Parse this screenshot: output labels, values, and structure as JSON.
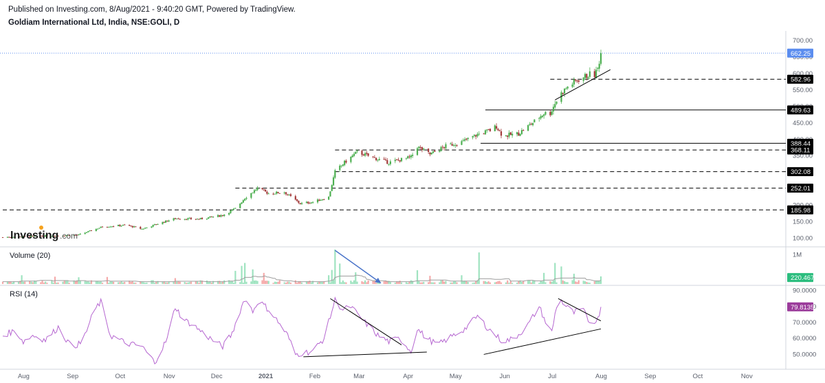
{
  "header": {
    "published": "Published on Investing.com, 8/Aug/2021 - 9:40:20 GMT, Powered by TradingView.",
    "symbol": "Goldiam International Ltd, India, NSE:GOLI, D"
  },
  "watermark": {
    "brand": "Investing",
    "suffix": ".com"
  },
  "colors": {
    "up": "#4caf50",
    "down": "#a33a3a",
    "vol_up": "#9fe3c0",
    "vol_down": "#f5aaaa",
    "vol_ma": "#9e9e9e",
    "rsi": "#b565d0",
    "price_tag": "#5b8def",
    "vol_tag": "#2bbd7e",
    "rsi_tag": "#9b3c9b",
    "level_tag": "#000000",
    "arrow": "#4a74c9"
  },
  "chart_data": {
    "type": "candlestick",
    "x_axis": {
      "labels": [
        "Aug",
        "Sep",
        "Oct",
        "Nov",
        "Dec",
        "2021",
        "Feb",
        "Mar",
        "Apr",
        "May",
        "Jun",
        "Jul",
        "Aug",
        "Sep",
        "Oct",
        "Nov"
      ],
      "start": "2020-07-24",
      "end": "2021-11-30"
    },
    "price": {
      "ylim": [
        80,
        715
      ],
      "ticks": [
        100,
        150,
        200,
        250,
        300,
        350,
        400,
        450,
        500,
        550,
        600,
        650,
        700
      ],
      "tick_labels": [
        "100.00",
        "150.00",
        "200.00",
        "250.00",
        "300.00",
        "350.00",
        "400.00",
        "450.00",
        "500.00",
        "550.00",
        "600.00",
        "650.00",
        "700.00"
      ],
      "last": {
        "value": 662.25,
        "label": "662.25"
      },
      "anchors": [
        [
          "2020-07-24",
          103
        ],
        [
          "2020-08-20",
          107
        ],
        [
          "2020-09-10",
          110
        ],
        [
          "2020-09-25",
          135
        ],
        [
          "2020-10-10",
          140
        ],
        [
          "2020-10-20",
          128
        ],
        [
          "2020-11-01",
          147
        ],
        [
          "2020-11-10",
          160
        ],
        [
          "2020-11-25",
          158
        ],
        [
          "2020-12-10",
          170
        ],
        [
          "2020-12-18",
          190
        ],
        [
          "2020-12-24",
          222
        ],
        [
          "2021-01-01",
          252
        ],
        [
          "2021-01-08",
          236
        ],
        [
          "2021-01-18",
          240
        ],
        [
          "2021-01-28",
          205
        ],
        [
          "2021-02-05",
          210
        ],
        [
          "2021-02-15",
          225
        ],
        [
          "2021-02-19",
          302
        ],
        [
          "2021-02-25",
          330
        ],
        [
          "2021-03-05",
          362
        ],
        [
          "2021-03-15",
          345
        ],
        [
          "2021-03-25",
          330
        ],
        [
          "2021-04-08",
          346
        ],
        [
          "2021-04-12",
          378
        ],
        [
          "2021-04-20",
          355
        ],
        [
          "2021-05-01",
          382
        ],
        [
          "2021-05-10",
          392
        ],
        [
          "2021-05-20",
          415
        ],
        [
          "2021-05-28",
          428
        ],
        [
          "2021-06-01",
          440
        ],
        [
          "2021-06-05",
          410
        ],
        [
          "2021-06-15",
          418
        ],
        [
          "2021-06-25",
          455
        ],
        [
          "2021-07-01",
          480
        ],
        [
          "2021-07-05",
          480
        ],
        [
          "2021-07-08",
          510
        ],
        [
          "2021-07-12",
          540
        ],
        [
          "2021-07-16",
          560
        ],
        [
          "2021-07-22",
          580
        ],
        [
          "2021-07-30",
          598
        ],
        [
          "2021-08-02",
          596
        ],
        [
          "2021-08-04",
          615
        ],
        [
          "2021-08-06",
          662.25
        ]
      ],
      "levels": [
        {
          "value": 582.96,
          "label": "582.96",
          "style": "dashed",
          "from": "2021-07-05"
        },
        {
          "value": 489.63,
          "label": "489.63",
          "style": "solid",
          "from": "2021-05-25"
        },
        {
          "value": 388.44,
          "label": "388.44",
          "style": "solid",
          "from": "2021-05-22"
        },
        {
          "value": 368.11,
          "label": "368.11",
          "style": "dashed",
          "from": "2021-02-19"
        },
        {
          "value": 302.08,
          "label": "302.08",
          "style": "dashed",
          "from": "2021-02-19"
        },
        {
          "value": 252.01,
          "label": "252.01",
          "style": "dashed",
          "from": "2020-12-18"
        },
        {
          "value": 185.98,
          "label": "185.98",
          "style": "dashed",
          "from": "2020-07-24"
        }
      ],
      "trendline": {
        "from": [
          "2021-07-08",
          520
        ],
        "to": [
          "2021-08-12",
          612
        ]
      }
    },
    "volume": {
      "title": "Volume (20)",
      "ylim": [
        0,
        1200000
      ],
      "ticks": [
        1000000
      ],
      "tick_labels": [
        "1M"
      ],
      "last": {
        "value": 220467,
        "label": "220.467K"
      },
      "spikes": [
        [
          "2020-08-05",
          300000
        ],
        [
          "2020-08-15",
          280000
        ],
        [
          "2020-08-26",
          250000
        ],
        [
          "2020-09-10",
          230000
        ],
        [
          "2020-09-28",
          240000
        ],
        [
          "2020-11-10",
          200000
        ],
        [
          "2020-12-12",
          250000
        ],
        [
          "2020-12-18",
          450000
        ],
        [
          "2020-12-22",
          620000
        ],
        [
          "2020-12-24",
          720000
        ],
        [
          "2020-12-29",
          500000
        ],
        [
          "2021-01-05",
          380000
        ],
        [
          "2021-02-15",
          300000
        ],
        [
          "2021-02-17",
          480000
        ],
        [
          "2021-02-19",
          1180000
        ],
        [
          "2021-02-22",
          700000
        ],
        [
          "2021-03-04",
          400000
        ],
        [
          "2021-04-12",
          470000
        ],
        [
          "2021-04-20",
          280000
        ],
        [
          "2021-05-10",
          300000
        ],
        [
          "2021-05-21",
          1080000
        ],
        [
          "2021-06-05",
          300000
        ],
        [
          "2021-06-20",
          350000
        ],
        [
          "2021-07-01",
          380000
        ],
        [
          "2021-07-08",
          720000
        ],
        [
          "2021-07-12",
          600000
        ],
        [
          "2021-07-20",
          350000
        ],
        [
          "2021-08-06",
          260000
        ]
      ],
      "arrow": {
        "from": [
          "2021-02-19",
          1150000
        ],
        "to": [
          "2021-03-20",
          30000
        ]
      }
    },
    "rsi": {
      "title": "RSI (14)",
      "ylim": [
        42,
        92
      ],
      "ticks": [
        50,
        60,
        70,
        80,
        90
      ],
      "tick_labels": [
        "50.0000",
        "60.0000",
        "70.0000",
        "80.0000",
        "90.0000"
      ],
      "last": {
        "value": 79.8135,
        "label": "79.8135"
      },
      "anchors": [
        [
          "2020-07-24",
          62
        ],
        [
          "2020-08-01",
          65
        ],
        [
          "2020-08-06",
          58
        ],
        [
          "2020-08-12",
          62
        ],
        [
          "2020-08-20",
          59
        ],
        [
          "2020-08-28",
          67
        ],
        [
          "2020-09-05",
          55
        ],
        [
          "2020-09-12",
          57
        ],
        [
          "2020-09-20",
          78
        ],
        [
          "2020-09-24",
          83
        ],
        [
          "2020-09-30",
          62
        ],
        [
          "2020-10-10",
          57
        ],
        [
          "2020-10-20",
          55
        ],
        [
          "2020-10-28",
          45
        ],
        [
          "2020-11-05",
          60
        ],
        [
          "2020-11-10",
          80
        ],
        [
          "2020-11-15",
          72
        ],
        [
          "2020-11-22",
          68
        ],
        [
          "2020-11-28",
          63
        ],
        [
          "2020-12-05",
          58
        ],
        [
          "2020-12-10",
          55
        ],
        [
          "2020-12-16",
          63
        ],
        [
          "2020-12-20",
          75
        ],
        [
          "2020-12-24",
          85
        ],
        [
          "2020-12-29",
          77
        ],
        [
          "2021-01-01",
          83
        ],
        [
          "2021-01-05",
          81
        ],
        [
          "2021-01-10",
          76
        ],
        [
          "2021-01-20",
          62
        ],
        [
          "2021-01-25",
          50
        ],
        [
          "2021-02-05",
          52
        ],
        [
          "2021-02-12",
          60
        ],
        [
          "2021-02-19",
          84
        ],
        [
          "2021-02-24",
          78
        ],
        [
          "2021-03-01",
          80
        ],
        [
          "2021-03-08",
          72
        ],
        [
          "2021-03-18",
          62
        ],
        [
          "2021-03-25",
          58
        ],
        [
          "2021-04-01",
          60
        ],
        [
          "2021-04-08",
          52
        ],
        [
          "2021-04-12",
          66
        ],
        [
          "2021-04-18",
          60
        ],
        [
          "2021-04-25",
          56
        ],
        [
          "2021-05-05",
          62
        ],
        [
          "2021-05-12",
          66
        ],
        [
          "2021-05-20",
          74
        ],
        [
          "2021-05-27",
          66
        ],
        [
          "2021-06-05",
          58
        ],
        [
          "2021-06-12",
          60
        ],
        [
          "2021-06-20",
          67
        ],
        [
          "2021-06-28",
          80
        ],
        [
          "2021-07-03",
          68
        ],
        [
          "2021-07-06",
          64
        ],
        [
          "2021-07-10",
          86
        ],
        [
          "2021-07-15",
          80
        ],
        [
          "2021-07-20",
          76
        ],
        [
          "2021-07-25",
          79
        ],
        [
          "2021-07-30",
          70
        ],
        [
          "2021-08-04",
          72
        ],
        [
          "2021-08-06",
          79.8
        ]
      ],
      "lines": [
        {
          "from": [
            "2021-01-30",
            48.5
          ],
          "to": [
            "2021-04-18",
            51.5
          ]
        },
        {
          "from": [
            "2021-02-16",
            85
          ],
          "to": [
            "2021-04-02",
            56
          ]
        },
        {
          "from": [
            "2021-05-24",
            50
          ],
          "to": [
            "2021-08-06",
            66
          ]
        },
        {
          "from": [
            "2021-07-10",
            85
          ],
          "to": [
            "2021-08-06",
            71
          ]
        }
      ]
    }
  }
}
